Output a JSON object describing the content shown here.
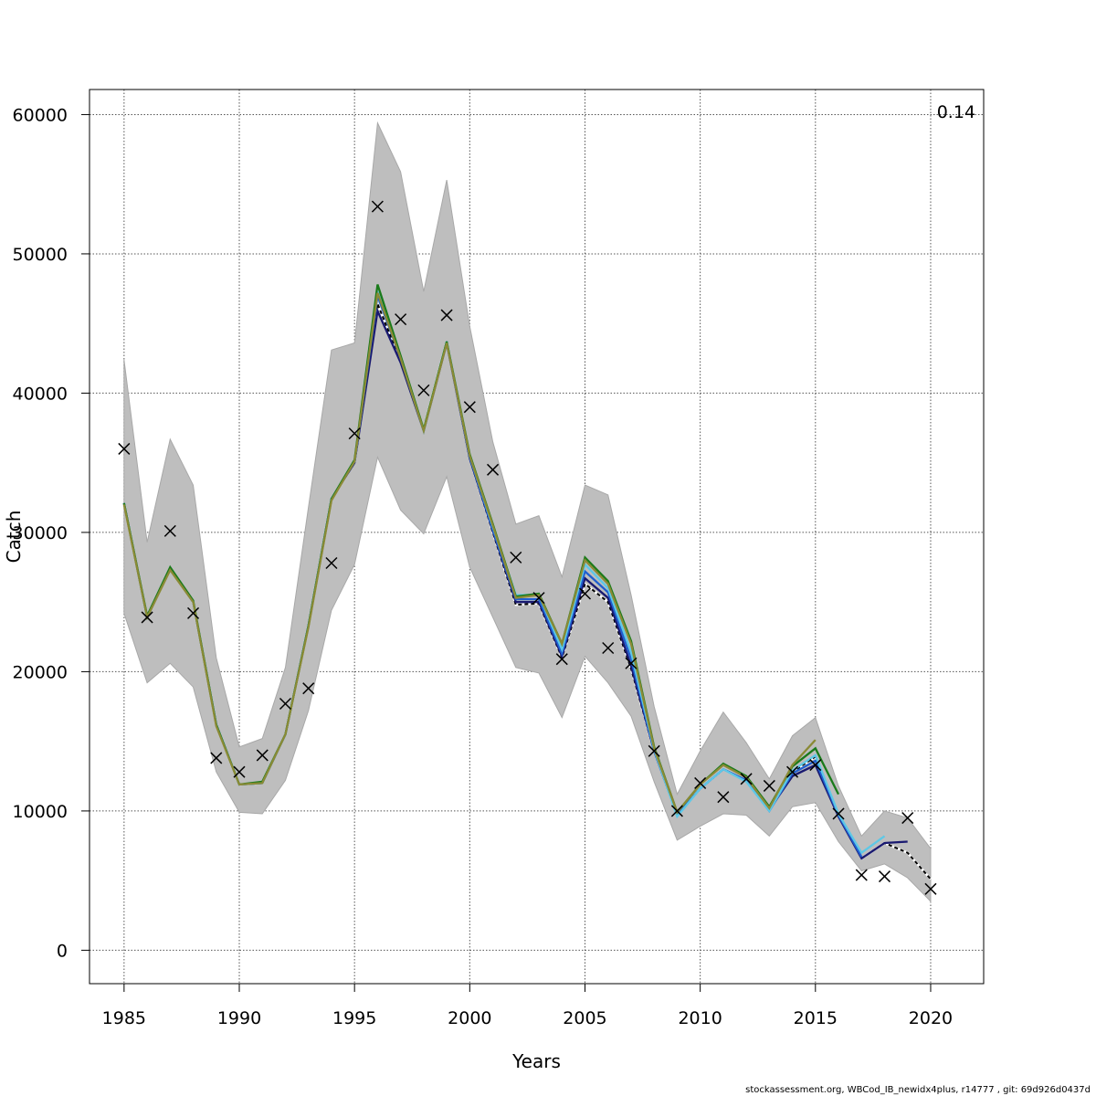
{
  "chart_data": {
    "type": "line",
    "xlabel": "Years",
    "ylabel": "Catch",
    "annotation": "0.14",
    "xlim": [
      1983.5,
      2022.3
    ],
    "ylim": [
      -2400,
      61800
    ],
    "xticks": [
      1985,
      1990,
      1995,
      2000,
      2005,
      2010,
      2015,
      2020
    ],
    "yticks": [
      0,
      10000,
      20000,
      30000,
      40000,
      50000,
      60000
    ],
    "grid": true,
    "band": {
      "x": [
        1985,
        1986,
        1987,
        1988,
        1989,
        1990,
        1991,
        1992,
        1993,
        1994,
        1995,
        1996,
        1997,
        1998,
        1999,
        2000,
        2001,
        2002,
        2003,
        2004,
        2005,
        2006,
        2007,
        2008,
        2009,
        2010,
        2011,
        2012,
        2013,
        2014,
        2015,
        2016,
        2017,
        2018,
        2019,
        2020
      ],
      "upper": [
        42400,
        29300,
        36700,
        33400,
        21000,
        14600,
        15200,
        20300,
        31800,
        43100,
        43600,
        59400,
        55900,
        47300,
        55300,
        44800,
        36500,
        30600,
        31200,
        26800,
        33400,
        32700,
        25500,
        17500,
        11200,
        14300,
        17100,
        14900,
        12300,
        15400,
        16700,
        11800,
        8200,
        10000,
        9500,
        7300
      ],
      "lower": [
        24200,
        19200,
        20600,
        18900,
        12800,
        9900,
        9800,
        12200,
        17200,
        24400,
        27700,
        35400,
        31600,
        29900,
        34000,
        27500,
        23900,
        20300,
        19900,
        16700,
        21100,
        19200,
        16800,
        12100,
        7900,
        8900,
        9800,
        9700,
        8200,
        10300,
        10600,
        7800,
        5700,
        6200,
        5200,
        3500
      ]
    },
    "observed": {
      "x": [
        1985,
        1986,
        1987,
        1988,
        1989,
        1990,
        1991,
        1992,
        1993,
        1994,
        1995,
        1996,
        1997,
        1998,
        1999,
        2000,
        2001,
        2002,
        2003,
        2004,
        2005,
        2006,
        2007,
        2008,
        2009,
        2010,
        2011,
        2012,
        2013,
        2014,
        2015,
        2016,
        2017,
        2018,
        2019,
        2020
      ],
      "values": [
        36000,
        23900,
        30100,
        24200,
        13800,
        12800,
        14000,
        17700,
        18800,
        27800,
        37100,
        53400,
        45300,
        40200,
        45600,
        39000,
        34500,
        28200,
        25300,
        20900,
        25600,
        21700,
        20600,
        14300,
        10000,
        12000,
        11000,
        12300,
        11800,
        12800,
        13300,
        9800,
        5400,
        5300,
        9500,
        4400
      ]
    },
    "series": [
      {
        "color": "#000000",
        "dashed": true,
        "x": [
          1985,
          1986,
          1987,
          1988,
          1989,
          1990,
          1991,
          1992,
          1993,
          1994,
          1995,
          1996,
          1997,
          1998,
          1999,
          2000,
          2001,
          2002,
          2003,
          2004,
          2005,
          2006,
          2007,
          2008,
          2009,
          2010,
          2011,
          2012,
          2013,
          2014,
          2015,
          2016,
          2017,
          2018,
          2019,
          2020
        ],
        "values": [
          32100,
          23900,
          27400,
          25000,
          16200,
          11900,
          12000,
          15500,
          23300,
          32400,
          35000,
          46400,
          42300,
          37400,
          43700,
          35300,
          30000,
          24800,
          24900,
          21000,
          26300,
          25000,
          20200,
          14300,
          9700,
          11600,
          13000,
          12200,
          10100,
          12800,
          13900,
          9700,
          6600,
          7700,
          7000,
          5100
        ]
      },
      {
        "color": "#191970",
        "dashed": false,
        "x": [
          1985,
          1986,
          1987,
          1988,
          1989,
          1990,
          1991,
          1992,
          1993,
          1994,
          1995,
          1996,
          1997,
          1998,
          1999,
          2000,
          2001,
          2002,
          2003,
          2004,
          2005,
          2006,
          2007,
          2008,
          2009,
          2010,
          2011,
          2012,
          2013,
          2014,
          2015,
          2016,
          2017,
          2018,
          2019
        ],
        "values": [
          32100,
          23900,
          27400,
          25000,
          16200,
          11900,
          12000,
          15500,
          23300,
          32400,
          35000,
          45900,
          42200,
          37300,
          43600,
          35300,
          30100,
          25000,
          25000,
          21100,
          26700,
          25300,
          20400,
          14300,
          9700,
          11600,
          13000,
          12200,
          10100,
          12500,
          13300,
          9600,
          6600,
          7700,
          7800
        ]
      },
      {
        "color": "#1f5fd0",
        "dashed": false,
        "x": [
          1985,
          1986,
          1987,
          1988,
          1989,
          1990,
          1991,
          1992,
          1993,
          1994,
          1995,
          1996,
          1997,
          1998,
          1999,
          2000,
          2001,
          2002,
          2003,
          2004,
          2005,
          2006,
          2007,
          2008,
          2009,
          2010,
          2011,
          2012,
          2013,
          2014,
          2015,
          2016,
          2017
        ],
        "values": [
          32100,
          23900,
          27400,
          25000,
          16200,
          11900,
          12000,
          15500,
          23300,
          32400,
          35100,
          47000,
          42500,
          37300,
          43700,
          35400,
          30200,
          25200,
          25200,
          21300,
          27200,
          25700,
          20900,
          14300,
          9700,
          11600,
          13000,
          12200,
          10000,
          12700,
          13600,
          9700,
          6700
        ]
      },
      {
        "color": "#5ec8e6",
        "dashed": false,
        "x": [
          1985,
          1986,
          1987,
          1988,
          1989,
          1990,
          1991,
          1992,
          1993,
          1994,
          1995,
          1996,
          1997,
          1998,
          1999,
          2000,
          2001,
          2002,
          2003,
          2004,
          2005,
          2006,
          2007,
          2008,
          2009,
          2010,
          2011,
          2012,
          2013,
          2014,
          2015,
          2016,
          2017,
          2018
        ],
        "values": [
          32100,
          23900,
          27400,
          25000,
          16200,
          11900,
          12000,
          15500,
          23300,
          32400,
          35100,
          47300,
          42600,
          37300,
          43700,
          35500,
          30400,
          25500,
          25500,
          21600,
          27700,
          26000,
          21400,
          14400,
          9600,
          11600,
          13000,
          12100,
          10000,
          12900,
          14000,
          9800,
          7000,
          8200
        ]
      },
      {
        "color": "#1a7a1a",
        "dashed": false,
        "x": [
          1985,
          1986,
          1987,
          1988,
          1989,
          1990,
          1991,
          1992,
          1993,
          1994,
          1995,
          1996,
          1997,
          1998,
          1999,
          2000,
          2001,
          2002,
          2003,
          2004,
          2005,
          2006,
          2007,
          2008,
          2009,
          2010,
          2011,
          2012,
          2013,
          2014,
          2015,
          2016
        ],
        "values": [
          32100,
          24000,
          27500,
          25100,
          16200,
          11900,
          12100,
          15500,
          23300,
          32400,
          35200,
          47800,
          42700,
          37400,
          43700,
          35600,
          30600,
          25400,
          25600,
          22000,
          28200,
          26500,
          22200,
          14600,
          9900,
          11900,
          13400,
          12500,
          10300,
          13200,
          14500,
          11200
        ]
      },
      {
        "color": "#8a8a35",
        "dashed": false,
        "x": [
          1985,
          1986,
          1987,
          1988,
          1989,
          1990,
          1991,
          1992,
          1993,
          1994,
          1995,
          1996,
          1997,
          1998,
          1999,
          2000,
          2001,
          2002,
          2003,
          2004,
          2005,
          2006,
          2007,
          2008,
          2009,
          2010,
          2011,
          2012,
          2013,
          2014,
          2015
        ],
        "values": [
          32000,
          23900,
          27300,
          25000,
          16100,
          11900,
          12000,
          15500,
          23200,
          32300,
          35100,
          47200,
          42500,
          37300,
          43600,
          35500,
          30500,
          25300,
          25500,
          22000,
          28000,
          26300,
          22000,
          14500,
          9900,
          11900,
          13300,
          12400,
          10200,
          13300,
          15100
        ]
      }
    ]
  },
  "footer": "stockassessment.org, WBCod_IB_newidx4plus, r14777 , git: 69d926d0437d"
}
